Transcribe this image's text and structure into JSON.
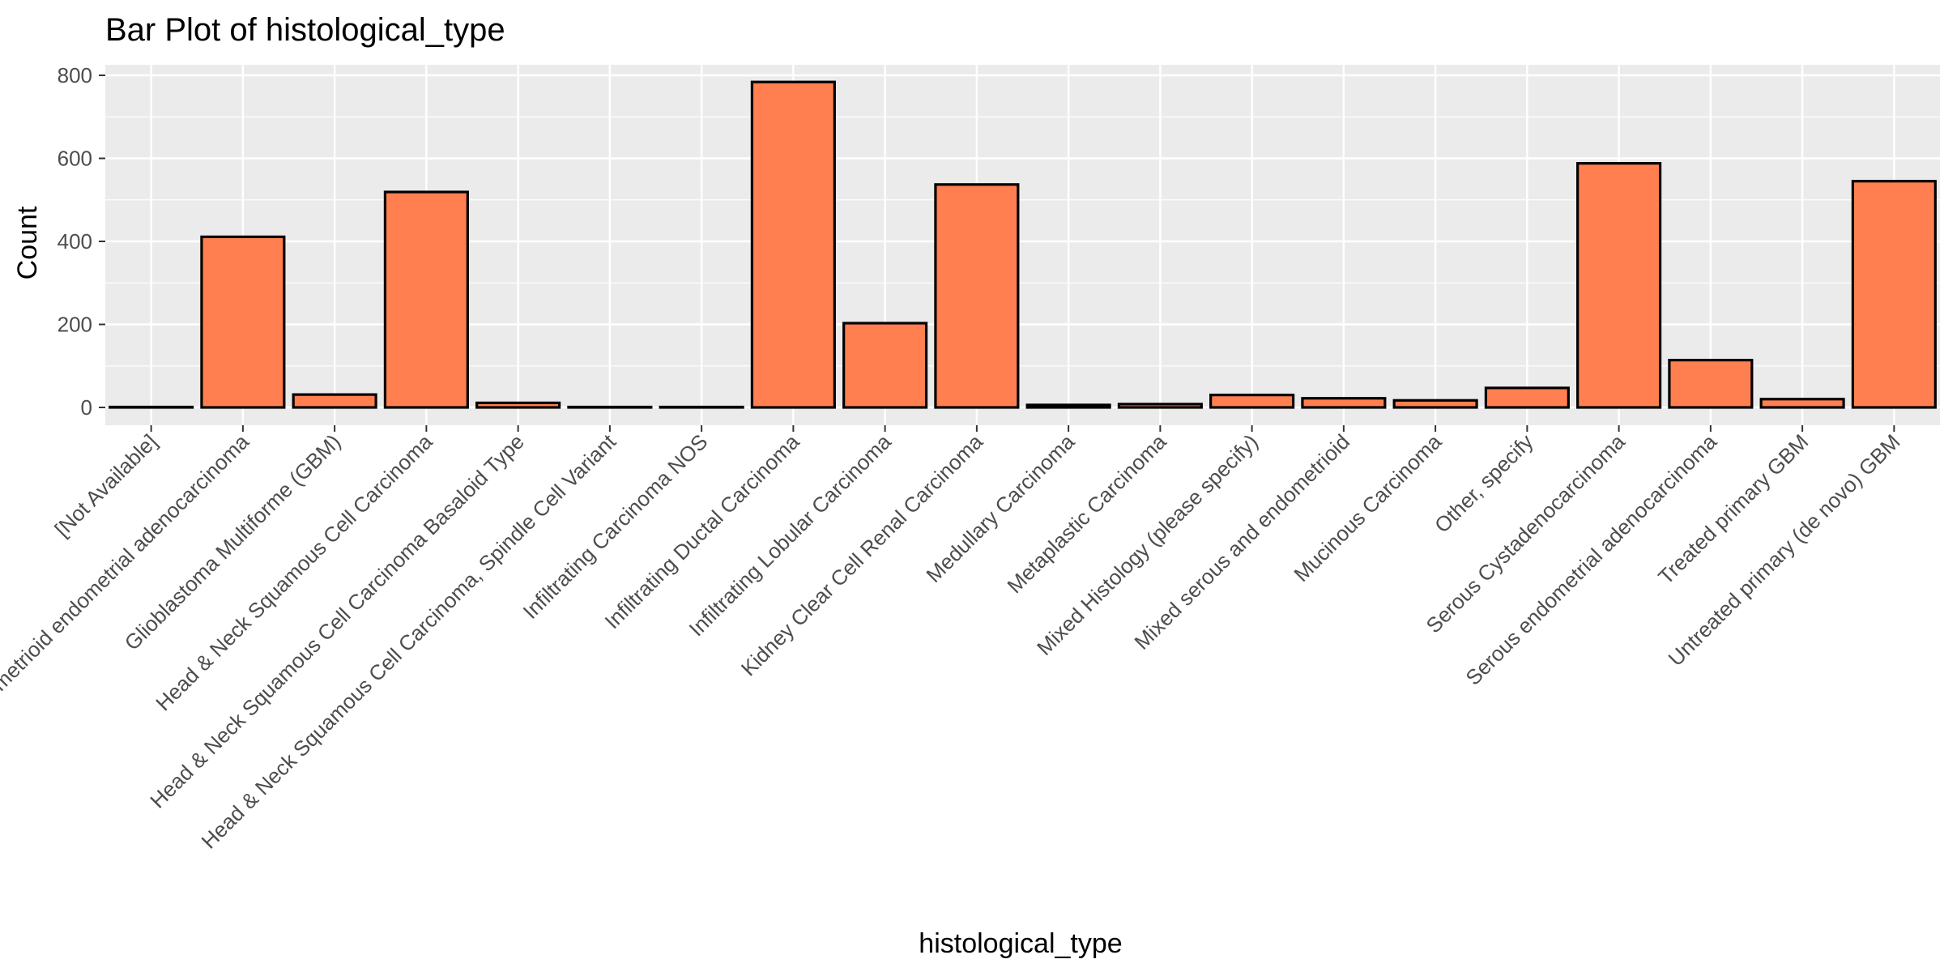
{
  "chart_data": {
    "type": "bar",
    "title": "Bar Plot of histological_type",
    "xlabel": "histological_type",
    "ylabel": "Count",
    "ylim": [
      0,
      800
    ],
    "yticks": [
      0,
      200,
      400,
      600,
      800
    ],
    "grid": true,
    "legend": "none",
    "categories": [
      "[Not Available]",
      "Endometrioid endometrial adenocarcinoma",
      "Glioblastoma Multiforme (GBM)",
      "Head & Neck Squamous Cell Carcinoma",
      "Head & Neck Squamous Cell Carcinoma Basaloid Type",
      "Head & Neck Squamous Cell Carcinoma, Spindle Cell Variant",
      "Infiltrating Carcinoma NOS",
      "Infiltrating Ductal Carcinoma",
      "Infiltrating Lobular Carcinoma",
      "Kidney Clear Cell Renal Carcinoma",
      "Medullary Carcinoma",
      "Metaplastic Carcinoma",
      "Mixed Histology (please specify)",
      "Mixed serous and endometrioid",
      "Mucinous Carcinoma",
      "Other, specify",
      "Serous Cystadenocarcinoma",
      "Serous endometrial adenocarcinoma",
      "Treated primary GBM",
      "Untreated primary (de novo) GBM"
    ],
    "values": [
      1,
      411,
      31,
      519,
      11,
      1,
      1,
      784,
      203,
      537,
      6,
      8,
      30,
      22,
      17,
      47,
      588,
      114,
      20,
      545
    ],
    "bar_fill": "#FF7F50",
    "bar_outline": "#000000",
    "panel_background": "#EBEBEB",
    "gridline_color": "#FFFFFF"
  }
}
